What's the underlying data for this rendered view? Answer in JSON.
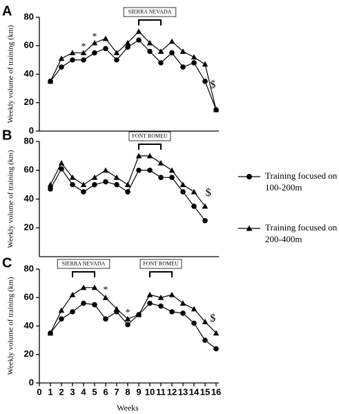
{
  "chart_data": [
    {
      "type": "line",
      "panel": "A",
      "ylabel": "Weekly volume of training (km)",
      "ylim": [
        0,
        80
      ],
      "yticks": [
        0,
        20,
        40,
        60,
        80
      ],
      "xlim": [
        0,
        16
      ],
      "x": [
        1,
        2,
        3,
        4,
        5,
        6,
        7,
        8,
        9,
        10,
        11,
        12,
        13,
        14,
        15,
        16
      ],
      "series": [
        {
          "name": "Training focused on 100-200m",
          "color": "#000000",
          "marker": "circle",
          "values": [
            35,
            45,
            50,
            50,
            55,
            58,
            50,
            59,
            64,
            56,
            48,
            55,
            45,
            48,
            35,
            15
          ]
        },
        {
          "name": "Training focused on 200-400m",
          "color": "#000000",
          "marker": "triangle",
          "values": [
            35,
            51,
            55,
            55,
            62,
            65,
            55,
            62,
            70,
            62,
            56,
            63,
            56,
            52,
            47,
            15
          ]
        }
      ],
      "annotations": [
        {
          "text": "*",
          "x": 4,
          "y": 59
        },
        {
          "text": "*",
          "x": 5,
          "y": 66
        },
        {
          "text": "$",
          "x": 15.7,
          "y": 32
        }
      ],
      "brackets": [
        {
          "label": "SIERRA NEVADA",
          "x": [
            9,
            11
          ]
        }
      ]
    },
    {
      "type": "line",
      "panel": "B",
      "ylabel": "Weekly volume of training (km)",
      "ylim": [
        0,
        80
      ],
      "yticks": [
        20,
        40,
        60,
        80
      ],
      "xlim": [
        0,
        16
      ],
      "x": [
        1,
        2,
        3,
        4,
        5,
        6,
        7,
        8,
        9,
        10,
        11,
        12,
        13,
        14,
        15
      ],
      "series": [
        {
          "color": "#000000",
          "marker": "circle",
          "values": [
            47,
            61,
            50,
            45,
            50,
            52,
            50,
            45,
            60,
            60,
            55,
            55,
            45,
            35,
            25
          ]
        },
        {
          "color": "#000000",
          "marker": "triangle",
          "values": [
            50,
            65,
            55,
            50,
            55,
            60,
            55,
            50,
            70,
            70,
            65,
            60,
            50,
            45,
            35
          ]
        }
      ],
      "annotations": [
        {
          "text": "$",
          "x": 15.3,
          "y": 44
        }
      ],
      "brackets": [
        {
          "label": "FONT ROMEU",
          "x": [
            9,
            11
          ]
        }
      ]
    },
    {
      "type": "line",
      "panel": "C",
      "ylabel": "Weekly volume of training (km)",
      "xlabel": "Weeks",
      "ylim": [
        0,
        80
      ],
      "yticks": [
        0,
        20,
        40,
        60,
        80
      ],
      "xlim": [
        0,
        16
      ],
      "xticks": [
        0,
        1,
        2,
        3,
        4,
        5,
        6,
        7,
        8,
        9,
        10,
        11,
        12,
        13,
        14,
        15,
        16
      ],
      "x": [
        1,
        2,
        3,
        4,
        5,
        6,
        7,
        8,
        9,
        10,
        11,
        12,
        13,
        14,
        15,
        16
      ],
      "series": [
        {
          "color": "#000000",
          "marker": "circle",
          "values": [
            35,
            45,
            50,
            56,
            55,
            45,
            50,
            41,
            48,
            56,
            54,
            50,
            49,
            42,
            30,
            24
          ]
        },
        {
          "color": "#000000",
          "marker": "triangle",
          "values": [
            35,
            51,
            62,
            67,
            67,
            60,
            52,
            45,
            48,
            62,
            60,
            62,
            56,
            52,
            43,
            35
          ]
        }
      ],
      "annotations": [
        {
          "text": "*",
          "x": 6,
          "y": 65
        },
        {
          "text": "*",
          "x": 8,
          "y": 49
        },
        {
          "text": "$",
          "x": 15.7,
          "y": 45
        }
      ],
      "brackets": [
        {
          "label": "SIERRA NEVADA",
          "x": [
            3,
            5
          ]
        },
        {
          "label": "FONT ROMEU",
          "x": [
            10,
            12
          ]
        }
      ]
    }
  ]
}
